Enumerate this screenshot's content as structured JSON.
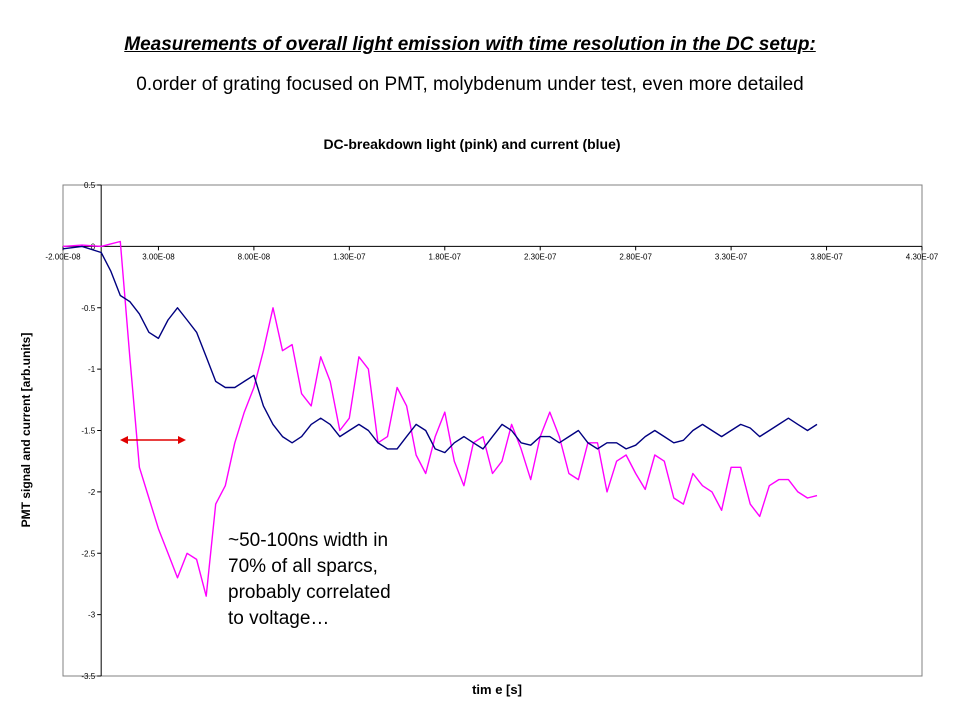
{
  "slide": {
    "title": "Measurements of overall light emission with time resolution in the DC setup:",
    "subtitle": "0.order of grating focused on PMT, molybdenum under test, even more detailed",
    "annotation_lines": [
      "~50-100ns width in",
      "70% of all sparcs,",
      "probably correlated",
      "to voltage…"
    ]
  },
  "chart_data": {
    "type": "line",
    "title": "DC-breakdown light (pink) and current (blue)",
    "xlabel": "tim e [s]",
    "ylabel": "PMT signal and current [arb.units]",
    "x_ticks": [
      -2e-08,
      3e-08,
      8e-08,
      1.3e-07,
      1.8e-07,
      2.3e-07,
      2.8e-07,
      3.3e-07,
      3.8e-07,
      4.3e-07
    ],
    "x_tick_labels": [
      "-2.00E-08",
      "3.00E-08",
      "8.00E-08",
      "1.30E-07",
      "1.80E-07",
      "2.30E-07",
      "2.80E-07",
      "3.30E-07",
      "3.80E-07",
      "4.30E-07"
    ],
    "y_ticks": [
      0.5,
      0,
      -0.5,
      -1,
      -1.5,
      -2,
      -2.5,
      -3,
      -3.5
    ],
    "y_tick_labels": [
      "0.5",
      "0",
      "-0.5",
      "-1",
      "-1.5",
      "-2",
      "-2.5",
      "-3",
      "-3.5"
    ],
    "xlim": [
      -2e-08,
      4.3e-07
    ],
    "ylim": [
      -3.5,
      0.5
    ],
    "grid": false,
    "series": [
      {
        "color": "#ff00ff",
        "x": [
          -2e-08,
          -1e-08,
          0,
          5e-09,
          1e-08,
          1.5e-08,
          2e-08,
          2.5e-08,
          3e-08,
          3.5e-08,
          4e-08,
          4.5e-08,
          5e-08,
          5.5e-08,
          6e-08,
          6.5e-08,
          7e-08,
          7.5e-08,
          8e-08,
          8.5e-08,
          9e-08,
          9.5e-08,
          1e-07,
          1.05e-07,
          1.1e-07,
          1.15e-07,
          1.2e-07,
          1.25e-07,
          1.3e-07,
          1.35e-07,
          1.4e-07,
          1.45e-07,
          1.5e-07,
          1.55e-07,
          1.6e-07,
          1.65e-07,
          1.7e-07,
          1.75e-07,
          1.8e-07,
          1.85e-07,
          1.9e-07,
          1.95e-07,
          2e-07,
          2.05e-07,
          2.1e-07,
          2.15e-07,
          2.2e-07,
          2.25e-07,
          2.3e-07,
          2.35e-07,
          2.4e-07,
          2.45e-07,
          2.5e-07,
          2.55e-07,
          2.6e-07,
          2.65e-07,
          2.7e-07,
          2.75e-07,
          2.8e-07,
          2.85e-07,
          2.9e-07,
          2.95e-07,
          3e-07,
          3.05e-07,
          3.1e-07,
          3.15e-07,
          3.2e-07,
          3.25e-07,
          3.3e-07,
          3.35e-07,
          3.4e-07,
          3.45e-07,
          3.5e-07,
          3.55e-07,
          3.6e-07,
          3.65e-07,
          3.7e-07,
          3.75e-07
        ],
        "y": [
          0,
          0.01,
          0,
          0.02,
          0.04,
          -0.9,
          -1.8,
          -2.05,
          -2.3,
          -2.5,
          -2.7,
          -2.5,
          -2.55,
          -2.85,
          -2.1,
          -1.95,
          -1.6,
          -1.35,
          -1.15,
          -0.85,
          -0.5,
          -0.85,
          -0.8,
          -1.2,
          -1.3,
          -0.9,
          -1.1,
          -1.5,
          -1.4,
          -0.9,
          -1.0,
          -1.6,
          -1.55,
          -1.15,
          -1.3,
          -1.7,
          -1.85,
          -1.55,
          -1.35,
          -1.75,
          -1.95,
          -1.6,
          -1.55,
          -1.85,
          -1.75,
          -1.45,
          -1.65,
          -1.9,
          -1.55,
          -1.35,
          -1.55,
          -1.85,
          -1.9,
          -1.6,
          -1.6,
          -2.0,
          -1.75,
          -1.7,
          -1.85,
          -1.98,
          -1.7,
          -1.75,
          -2.05,
          -2.1,
          -1.85,
          -1.95,
          -2.0,
          -2.15,
          -1.8,
          -1.8,
          -2.1,
          -2.2,
          -1.95,
          -1.9,
          -1.9,
          -2.0,
          -2.05,
          -2.03
        ]
      },
      {
        "color": "#000080",
        "x": [
          -2e-08,
          -1e-08,
          0,
          5e-09,
          1e-08,
          1.5e-08,
          2e-08,
          2.5e-08,
          3e-08,
          3.5e-08,
          4e-08,
          4.5e-08,
          5e-08,
          5.5e-08,
          6e-08,
          6.5e-08,
          7e-08,
          7.5e-08,
          8e-08,
          8.5e-08,
          9e-08,
          9.5e-08,
          1e-07,
          1.05e-07,
          1.1e-07,
          1.15e-07,
          1.2e-07,
          1.25e-07,
          1.3e-07,
          1.35e-07,
          1.4e-07,
          1.45e-07,
          1.5e-07,
          1.55e-07,
          1.6e-07,
          1.65e-07,
          1.7e-07,
          1.75e-07,
          1.8e-07,
          1.85e-07,
          1.9e-07,
          1.95e-07,
          2e-07,
          2.05e-07,
          2.1e-07,
          2.15e-07,
          2.2e-07,
          2.25e-07,
          2.3e-07,
          2.35e-07,
          2.4e-07,
          2.45e-07,
          2.5e-07,
          2.55e-07,
          2.6e-07,
          2.65e-07,
          2.7e-07,
          2.75e-07,
          2.8e-07,
          2.85e-07,
          2.9e-07,
          2.95e-07,
          3e-07,
          3.05e-07,
          3.1e-07,
          3.15e-07,
          3.2e-07,
          3.25e-07,
          3.3e-07,
          3.35e-07,
          3.4e-07,
          3.45e-07,
          3.5e-07,
          3.55e-07,
          3.6e-07,
          3.65e-07,
          3.7e-07,
          3.75e-07
        ],
        "y": [
          -0.02,
          0,
          -0.05,
          -0.2,
          -0.4,
          -0.45,
          -0.55,
          -0.7,
          -0.75,
          -0.6,
          -0.5,
          -0.6,
          -0.7,
          -0.9,
          -1.1,
          -1.15,
          -1.15,
          -1.1,
          -1.05,
          -1.3,
          -1.45,
          -1.55,
          -1.6,
          -1.55,
          -1.45,
          -1.4,
          -1.45,
          -1.55,
          -1.5,
          -1.45,
          -1.5,
          -1.6,
          -1.65,
          -1.65,
          -1.55,
          -1.45,
          -1.5,
          -1.65,
          -1.68,
          -1.6,
          -1.55,
          -1.6,
          -1.65,
          -1.55,
          -1.45,
          -1.5,
          -1.6,
          -1.62,
          -1.55,
          -1.55,
          -1.6,
          -1.55,
          -1.5,
          -1.6,
          -1.65,
          -1.6,
          -1.6,
          -1.65,
          -1.62,
          -1.55,
          -1.5,
          -1.55,
          -1.6,
          -1.58,
          -1.5,
          -1.45,
          -1.5,
          -1.55,
          -1.5,
          -1.45,
          -1.48,
          -1.55,
          -1.5,
          -1.45,
          -1.4,
          -1.45,
          -1.5,
          -1.45
        ]
      }
    ]
  }
}
